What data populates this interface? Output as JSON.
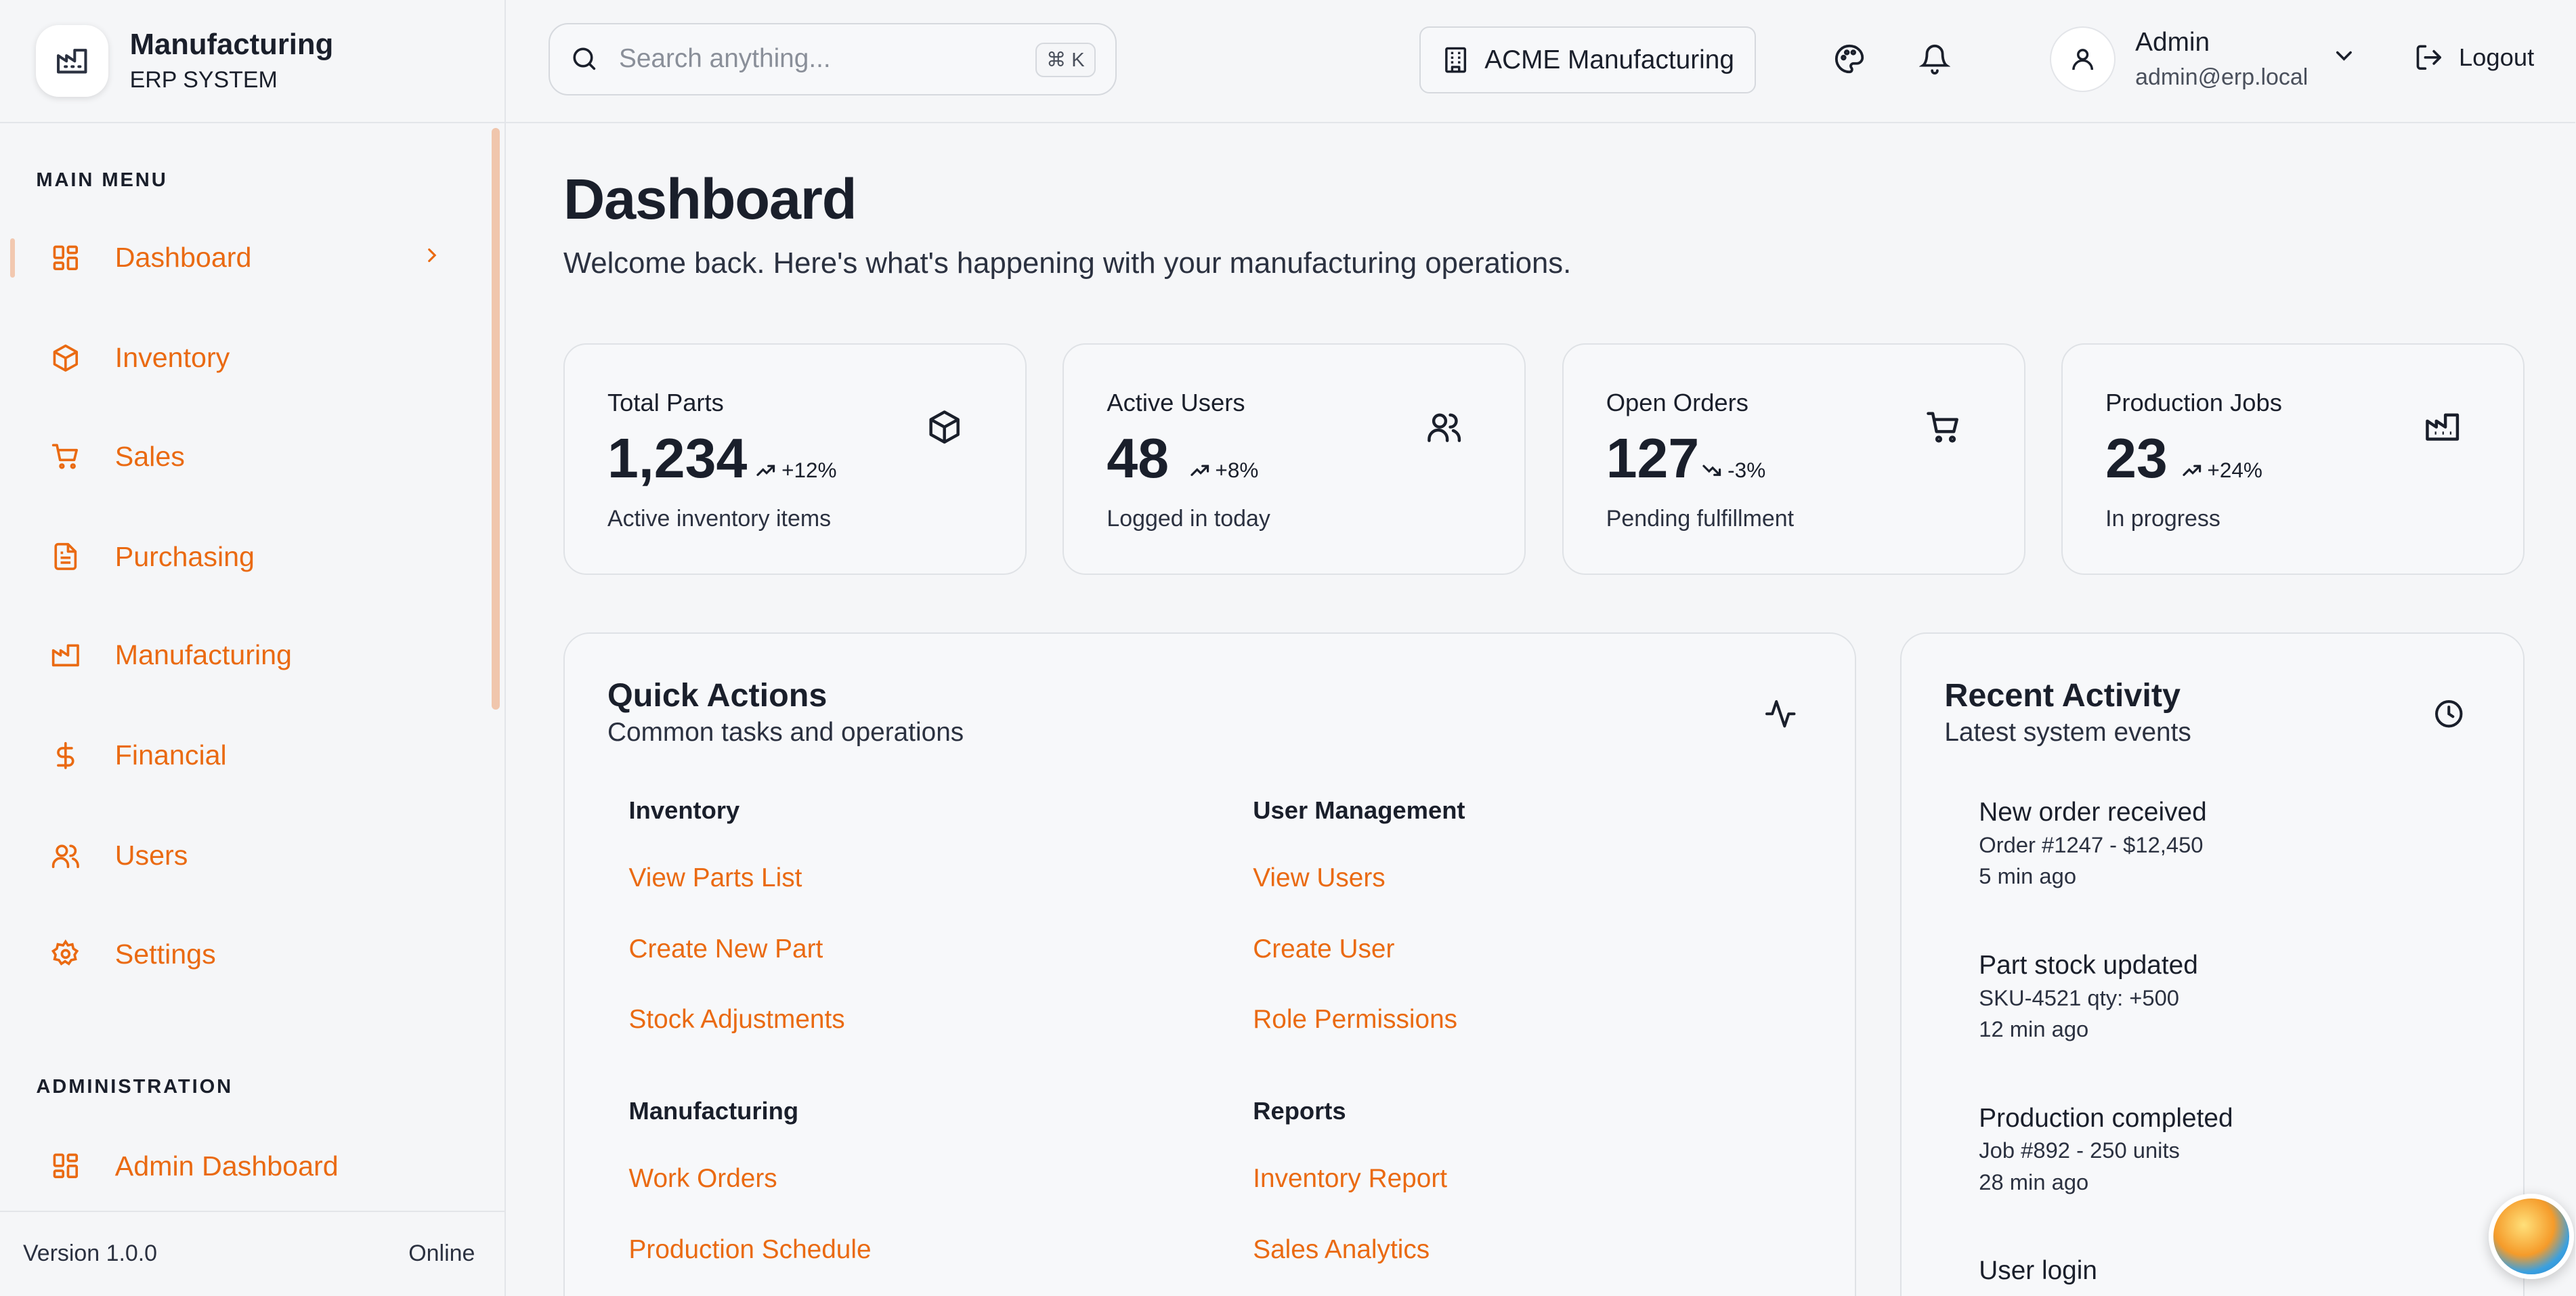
{
  "brand": {
    "title": "Manufacturing",
    "subtitle": "ERP SYSTEM"
  },
  "sidebar": {
    "main_label": "MAIN MENU",
    "items": [
      {
        "label": "Dashboard",
        "icon": "grid-icon"
      },
      {
        "label": "Inventory",
        "icon": "box-icon"
      },
      {
        "label": "Sales",
        "icon": "cart-icon"
      },
      {
        "label": "Purchasing",
        "icon": "document-icon"
      },
      {
        "label": "Manufacturing",
        "icon": "factory-icon"
      },
      {
        "label": "Financial",
        "icon": "dollar-icon"
      },
      {
        "label": "Users",
        "icon": "users-icon"
      },
      {
        "label": "Settings",
        "icon": "gear-icon"
      }
    ],
    "admin_label": "ADMINISTRATION",
    "admin_items": [
      {
        "label": "Admin Dashboard",
        "icon": "grid-icon"
      }
    ],
    "footer": {
      "version": "Version 1.0.0",
      "status": "Online"
    }
  },
  "header": {
    "search_placeholder": "Search anything...",
    "shortcut": "⌘ K",
    "company": "ACME Manufacturing",
    "user_name": "Admin",
    "user_email": "admin@erp.local",
    "logout": "Logout"
  },
  "page": {
    "title": "Dashboard",
    "subtitle": "Welcome back. Here's what's happening with your manufacturing operations."
  },
  "stats": [
    {
      "label": "Total Parts",
      "value": "1,234",
      "trend": "+12%",
      "direction": "up",
      "desc": "Active inventory items",
      "icon": "box-icon"
    },
    {
      "label": "Active Users",
      "value": "48",
      "trend": "+8%",
      "direction": "up",
      "desc": "Logged in today",
      "icon": "users-icon"
    },
    {
      "label": "Open Orders",
      "value": "127",
      "trend": "-3%",
      "direction": "down",
      "desc": "Pending fulfillment",
      "icon": "cart-icon"
    },
    {
      "label": "Production Jobs",
      "value": "23",
      "trend": "+24%",
      "direction": "up",
      "desc": "In progress",
      "icon": "factory-icon"
    }
  ],
  "quick_actions": {
    "title": "Quick Actions",
    "subtitle": "Common tasks and operations",
    "groups": [
      {
        "heading": "Inventory",
        "links": [
          "View Parts List",
          "Create New Part",
          "Stock Adjustments"
        ]
      },
      {
        "heading": "User Management",
        "links": [
          "View Users",
          "Create User",
          "Role Permissions"
        ]
      },
      {
        "heading": "Manufacturing",
        "links": [
          "Work Orders",
          "Production Schedule"
        ]
      },
      {
        "heading": "Reports",
        "links": [
          "Inventory Report",
          "Sales Analytics"
        ]
      }
    ]
  },
  "recent_activity": {
    "title": "Recent Activity",
    "subtitle": "Latest system events",
    "items": [
      {
        "title": "New order received",
        "detail": "Order #1247 - $12,450",
        "time": "5 min ago"
      },
      {
        "title": "Part stock updated",
        "detail": "SKU-4521 qty: +500",
        "time": "12 min ago"
      },
      {
        "title": "Production completed",
        "detail": "Job #892 - 250 units",
        "time": "28 min ago"
      },
      {
        "title": "User login",
        "detail": "",
        "time": ""
      }
    ]
  },
  "colors": {
    "accent": "#ea6a12",
    "text": "#1a1f2b",
    "background": "#f5f6f8"
  }
}
